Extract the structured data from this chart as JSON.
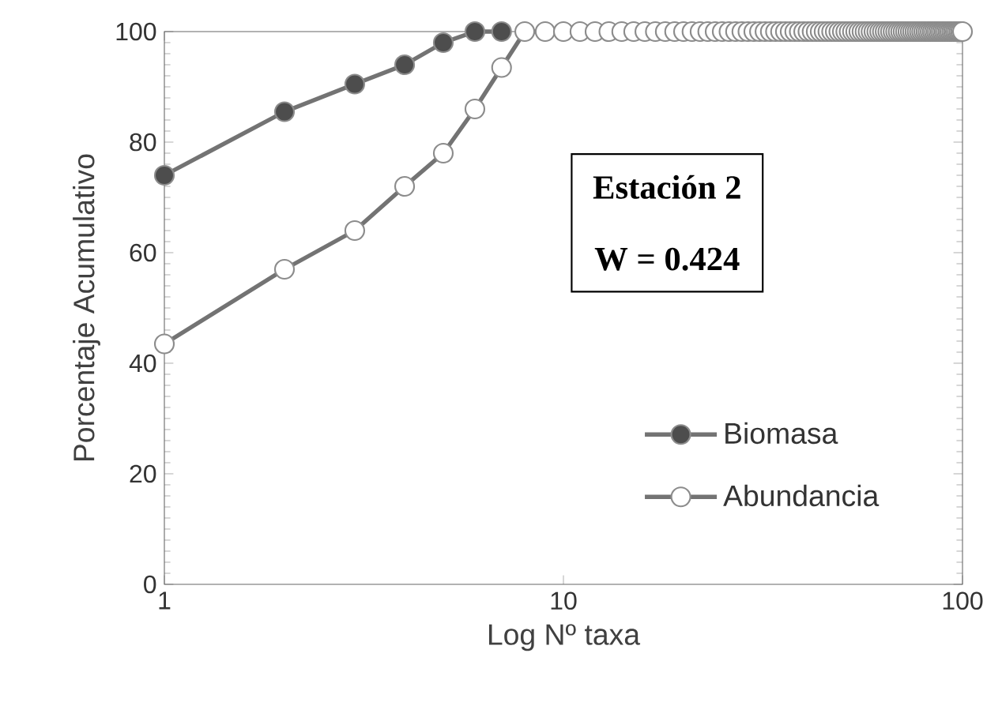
{
  "chart_data": {
    "type": "line",
    "xlabel": "Log Nº taxa",
    "ylabel": "Porcentaje Acumulativo",
    "log": "x",
    "xlim": [
      1,
      100
    ],
    "xticks": [
      1,
      10,
      100
    ],
    "ylim": [
      0,
      100
    ],
    "yticks": [
      0,
      20,
      40,
      60,
      80,
      100
    ],
    "grid": false,
    "legend": "bottom right",
    "marker": "circle",
    "line_style": "solid",
    "annotations": [
      "**Estación 2**",
      "**W = 0.424**"
    ],
    "series": [
      {
        "name": "Biomasa",
        "color": "#4d4d4d",
        "x": [
          1,
          2,
          3,
          4,
          5,
          6,
          7
        ],
        "values": [
          74,
          85.5,
          90.5,
          94,
          98,
          100,
          100
        ]
      },
      {
        "name": "Abundancia",
        "color": "#ffffff",
        "x": [
          1,
          2,
          3,
          4,
          5,
          6,
          7,
          8,
          9,
          10,
          11,
          12,
          13,
          14,
          15,
          16,
          17,
          18,
          19,
          20,
          21,
          22,
          23,
          24,
          25,
          26,
          27,
          28,
          29,
          30,
          31,
          32,
          33,
          34,
          35,
          36,
          37,
          38,
          39,
          40,
          41,
          42,
          43,
          44,
          45,
          46,
          47,
          48,
          49,
          50,
          51,
          52,
          53,
          54,
          55,
          56,
          57,
          58,
          59,
          60,
          61,
          62,
          63,
          64,
          65,
          66,
          67,
          68,
          69,
          70,
          71,
          72,
          73,
          74,
          75,
          76,
          77,
          78,
          79,
          80,
          81,
          82,
          83,
          84,
          85,
          86,
          87,
          88,
          89,
          90,
          91,
          92,
          93,
          94,
          95,
          96,
          97,
          98,
          99,
          100
        ],
        "values": [
          43.5,
          57,
          64,
          72,
          78,
          86,
          93.5,
          100,
          100,
          100,
          100,
          100,
          100,
          100,
          100,
          100,
          100,
          100,
          100,
          100,
          100,
          100,
          100,
          100,
          100,
          100,
          100,
          100,
          100,
          100,
          100,
          100,
          100,
          100,
          100,
          100,
          100,
          100,
          100,
          100,
          100,
          100,
          100,
          100,
          100,
          100,
          100,
          100,
          100,
          100,
          100,
          100,
          100,
          100,
          100,
          100,
          100,
          100,
          100,
          100,
          100,
          100,
          100,
          100,
          100,
          100,
          100,
          100,
          100,
          100,
          100,
          100,
          100,
          100,
          100,
          100,
          100,
          100,
          100,
          100,
          100,
          100,
          100,
          100,
          100,
          100,
          100,
          100,
          100,
          100,
          100,
          100,
          100,
          100,
          100,
          100,
          100,
          100,
          100,
          100
        ]
      }
    ]
  }
}
